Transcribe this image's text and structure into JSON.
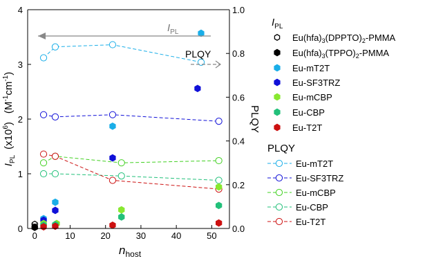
{
  "chart_data": {
    "type": "scatter",
    "title": "",
    "xlabel": {
      "main": "n",
      "sub": "host"
    },
    "ylabel_left": {
      "main": "I",
      "sub": "PL",
      "mid": "(x10",
      "sup": "6",
      "after": ")",
      "units": "(M",
      "units_sup1": "-1",
      "units_mid": "cm",
      "units_sup2": "-1",
      "units_end": ")"
    },
    "ylabel_right": "PLQY",
    "xlim": [
      -2,
      55
    ],
    "ylim_left": [
      0,
      4
    ],
    "ylim_right": [
      0,
      1.0
    ],
    "x_ticks": [
      "0",
      "10",
      "20",
      "30",
      "40",
      "50"
    ],
    "y_left_ticks": [
      "0",
      "1",
      "2",
      "3",
      "4"
    ],
    "y_right_ticks": [
      "0.0",
      "0.2",
      "0.4",
      "0.6",
      "0.8",
      "1.0"
    ],
    "annotations": {
      "ipl_arrow": {
        "main": "I",
        "sub": "PL"
      },
      "plqy_arrow": "PLQY"
    },
    "legend": {
      "ipl_header": {
        "main": "I",
        "sub": "PL"
      },
      "plqy_header": "PLQY"
    },
    "ipl_series": [
      {
        "name": "Eu(hfa)3(DPPTO)2-PMMA",
        "name_parts": [
          "Eu(hfa)",
          "3",
          "(DPPTO)",
          "2",
          "-PMMA"
        ],
        "marker": "open-hex",
        "color": "#000000",
        "points": [
          {
            "x": 0,
            "y": 0.08
          }
        ]
      },
      {
        "name": "Eu(hfa)3(TPPO)2-PMMA",
        "name_parts": [
          "Eu(hfa)",
          "3",
          "(TPPO)",
          "2",
          "-PMMA"
        ],
        "marker": "filled-hex",
        "color": "#000000",
        "points": [
          {
            "x": 0,
            "y": 0.02
          }
        ]
      },
      {
        "name": "Eu-mT2T",
        "marker": "filled-hex",
        "color": "#1aaee8",
        "points": [
          {
            "x": 2.5,
            "y": 0.18
          },
          {
            "x": 5.8,
            "y": 0.48
          },
          {
            "x": 22,
            "y": 1.87
          },
          {
            "x": 47,
            "y": 3.57
          }
        ]
      },
      {
        "name": "Eu-SF3TRZ",
        "marker": "filled-hex",
        "color": "#1010d8",
        "points": [
          {
            "x": 2.5,
            "y": 0.15
          },
          {
            "x": 5.8,
            "y": 0.33
          },
          {
            "x": 22,
            "y": 1.29
          },
          {
            "x": 46,
            "y": 2.56
          }
        ]
      },
      {
        "name": "Eu-mCBP",
        "marker": "filled-hex",
        "color": "#88e830",
        "points": [
          {
            "x": 2.5,
            "y": 0.09
          },
          {
            "x": 6.2,
            "y": 0.09
          },
          {
            "x": 24.5,
            "y": 0.34
          },
          {
            "x": 52,
            "y": 0.76
          }
        ]
      },
      {
        "name": "Eu-CBP",
        "marker": "filled-hex",
        "color": "#22c07a",
        "points": [
          {
            "x": 2.5,
            "y": 0.06
          },
          {
            "x": 5.8,
            "y": 0.07
          },
          {
            "x": 24.5,
            "y": 0.21
          },
          {
            "x": 52,
            "y": 0.42
          }
        ]
      },
      {
        "name": "Eu-T2T",
        "marker": "filled-hex",
        "color": "#cc1010",
        "points": [
          {
            "x": 2.5,
            "y": 0.03
          },
          {
            "x": 5.8,
            "y": 0.04
          },
          {
            "x": 22,
            "y": 0.06
          },
          {
            "x": 52,
            "y": 0.1
          }
        ]
      }
    ],
    "plqy_series": [
      {
        "name": "Eu-mT2T",
        "color": "#1aaee8",
        "points": [
          {
            "x": 2.5,
            "y": 0.78
          },
          {
            "x": 5.8,
            "y": 0.83
          },
          {
            "x": 22,
            "y": 0.84
          },
          {
            "x": 47,
            "y": 0.76
          }
        ]
      },
      {
        "name": "Eu-SF3TRZ",
        "color": "#1010d8",
        "points": [
          {
            "x": 2.5,
            "y": 0.52
          },
          {
            "x": 5.8,
            "y": 0.51
          },
          {
            "x": 22,
            "y": 0.52
          },
          {
            "x": 52,
            "y": 0.49
          }
        ]
      },
      {
        "name": "Eu-mCBP",
        "color": "#40d020",
        "points": [
          {
            "x": 2.5,
            "y": 0.3
          },
          {
            "x": 5.8,
            "y": 0.33
          },
          {
            "x": 24.5,
            "y": 0.3
          },
          {
            "x": 52,
            "y": 0.31
          }
        ]
      },
      {
        "name": "Eu-CBP",
        "color": "#22c07a",
        "points": [
          {
            "x": 2.5,
            "y": 0.25
          },
          {
            "x": 5.8,
            "y": 0.25
          },
          {
            "x": 24.5,
            "y": 0.24
          },
          {
            "x": 52,
            "y": 0.22
          }
        ]
      },
      {
        "name": "Eu-T2T",
        "color": "#cc1010",
        "points": [
          {
            "x": 2.5,
            "y": 0.34
          },
          {
            "x": 5.8,
            "y": 0.33
          },
          {
            "x": 22,
            "y": 0.22
          },
          {
            "x": 52,
            "y": 0.18
          }
        ]
      }
    ],
    "grid": false,
    "legend_placement": "right"
  }
}
